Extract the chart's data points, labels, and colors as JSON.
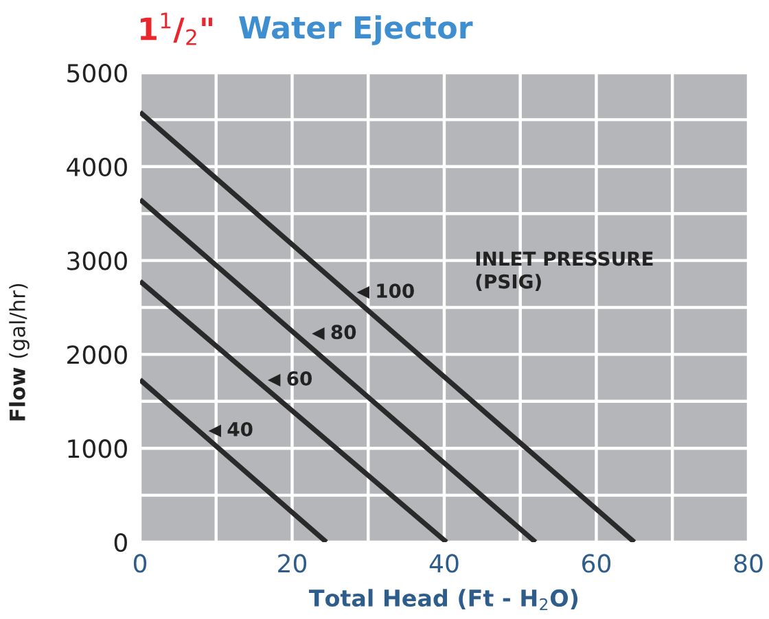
{
  "chart_data": {
    "type": "line",
    "title": "1$^{1}$/$_{2}$\" Water Ejector",
    "xlabel": "Total Head (Ft - H$_{2}$O)",
    "ylabel": "Flow (gal/hr)",
    "series": [
      {
        "color": "#2a2a2a",
        "x": [
          0,
          65
        ],
        "values": [
          4580,
          0
        ]
      },
      {
        "color": "#2a2a2a",
        "x": [
          0,
          52
        ],
        "values": [
          3650,
          0
        ]
      },
      {
        "color": "#2a2a2a",
        "x": [
          0,
          40.3
        ],
        "values": [
          2780,
          0
        ]
      },
      {
        "color": "#2a2a2a",
        "x": [
          0,
          24.5
        ],
        "values": [
          1730,
          0
        ]
      }
    ],
    "annotations": [
      {
        "text": "100",
        "x": 29.4,
        "y": 2660
      },
      {
        "text": "80",
        "x": 23.5,
        "y": 2220
      },
      {
        "text": "60",
        "x": 17.7,
        "y": 1725
      },
      {
        "text": "40",
        "x": 9.9,
        "y": 1185
      },
      "INLET PRESSURE\n(PSIG)"
    ],
    "xlim": [
      0,
      80
    ],
    "ylim": [
      0,
      5000
    ],
    "xticks": [
      0,
      {
        "value": 10,
        "label": null
      },
      20,
      {
        "value": 30,
        "label": null
      },
      40,
      {
        "value": 50,
        "label": null
      },
      60,
      {
        "value": 70,
        "label": null
      },
      80
    ],
    "yticks": [
      0,
      {
        "value": 500,
        "label": null
      },
      1000,
      {
        "value": 1500,
        "label": null
      },
      2000,
      {
        "value": 2500,
        "label": null
      },
      3000,
      {
        "value": 3500,
        "label": null
      },
      4000,
      {
        "value": 4500,
        "label": null
      },
      5000
    ],
    "grid": true,
    "marker": "none",
    "line_style": "solid"
  }
}
